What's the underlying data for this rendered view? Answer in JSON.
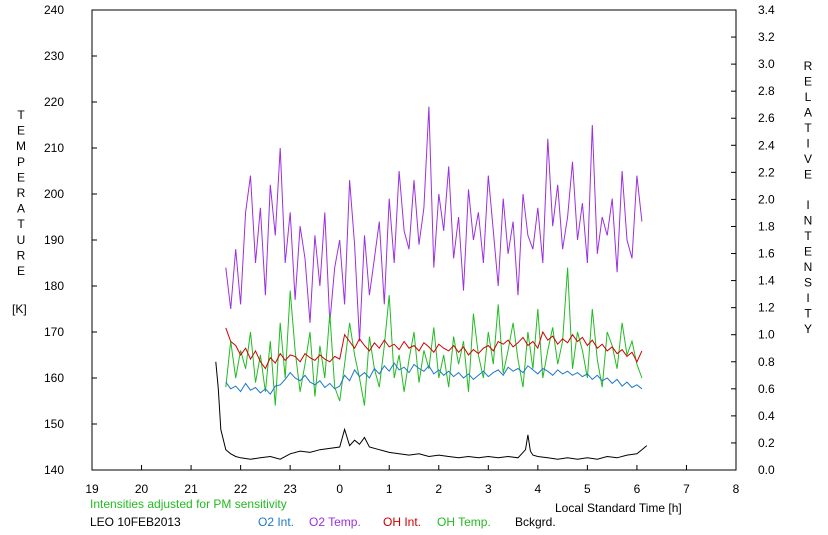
{
  "chart_data": {
    "type": "line",
    "xlabel": "Local Standard Time [h]",
    "ylabel_left": "TEMPERATURE",
    "ylabel_left_unit": "[K]",
    "ylabel_right": "RELATIVE INTENSITY",
    "xlim": [
      19,
      32
    ],
    "ylim_left": [
      140,
      240
    ],
    "ylim_right": [
      0,
      3.4
    ],
    "x_tick_labels": [
      "19",
      "20",
      "21",
      "22",
      "23",
      "0",
      "1",
      "2",
      "3",
      "4",
      "5",
      "6",
      "7",
      "8"
    ],
    "y_left_tick_labels": [
      "240",
      "230",
      "220",
      "210",
      "200",
      "190",
      "180",
      "170",
      "160",
      "150",
      "140"
    ],
    "y_right_tick_labels": [
      "3.4",
      "3.2",
      "3.0",
      "2.8",
      "2.6",
      "2.4",
      "2.2",
      "2.0",
      "1.8",
      "1.6",
      "1.4",
      "1.2",
      "1.0",
      "0.8",
      "0.6",
      "0.4",
      "0.2",
      "0.0"
    ],
    "note": "Intensities adjusted for PM sensitivity",
    "station": "LEO 10FEB2013",
    "grid": false,
    "colors": {
      "o2_int": "#1f78c8",
      "o2_temp": "#9b30e0",
      "oh_int": "#d00000",
      "oh_temp": "#22bb22",
      "bckgrd": "#000000",
      "note": "#22bb22"
    },
    "series": [
      {
        "name": "O2 Temp.",
        "axis": "left",
        "key": "o2_temp",
        "x": [
          21.7,
          21.8,
          21.9,
          22.0,
          22.1,
          22.2,
          22.3,
          22.4,
          22.5,
          22.6,
          22.7,
          22.8,
          22.9,
          23.0,
          23.1,
          23.2,
          23.3,
          23.4,
          23.5,
          23.6,
          23.7,
          23.8,
          23.9,
          24.0,
          24.1,
          24.2,
          24.3,
          24.4,
          24.5,
          24.6,
          24.7,
          24.8,
          24.9,
          25.0,
          25.1,
          25.2,
          25.3,
          25.4,
          25.5,
          25.6,
          25.7,
          25.8,
          25.9,
          26.0,
          26.1,
          26.2,
          26.3,
          26.4,
          26.5,
          26.6,
          26.7,
          26.8,
          26.9,
          27.0,
          27.1,
          27.2,
          27.3,
          27.4,
          27.5,
          27.6,
          27.7,
          27.8,
          27.9,
          28.0,
          28.1,
          28.2,
          28.3,
          28.4,
          28.5,
          28.6,
          28.7,
          28.8,
          28.9,
          29.0,
          29.1,
          29.2,
          29.3,
          29.4,
          29.5,
          29.6,
          29.7,
          29.8,
          29.9,
          30.0,
          30.1
        ],
        "y": [
          184,
          175,
          188,
          176,
          196,
          204,
          185,
          197,
          178,
          202,
          191,
          210,
          185,
          196,
          177,
          193,
          186,
          172,
          191,
          180,
          196,
          172,
          184,
          190,
          176,
          203,
          189,
          168,
          191,
          178,
          186,
          194,
          176,
          199,
          185,
          205,
          192,
          188,
          203,
          189,
          197,
          219,
          184,
          200,
          192,
          206,
          186,
          195,
          179,
          201,
          190,
          196,
          185,
          204,
          192,
          180,
          199,
          187,
          194,
          178,
          200,
          191,
          188,
          197,
          185,
          212,
          193,
          202,
          188,
          195,
          207,
          190,
          198,
          185,
          215,
          187,
          195,
          191,
          199,
          183,
          205,
          190,
          186,
          204,
          194
        ]
      },
      {
        "name": "OH Temp.",
        "axis": "left",
        "key": "oh_temp",
        "x": [
          21.7,
          21.8,
          21.9,
          22.0,
          22.1,
          22.2,
          22.3,
          22.4,
          22.5,
          22.6,
          22.7,
          22.8,
          22.9,
          23.0,
          23.1,
          23.2,
          23.3,
          23.4,
          23.5,
          23.6,
          23.7,
          23.8,
          23.9,
          24.0,
          24.1,
          24.2,
          24.3,
          24.4,
          24.5,
          24.6,
          24.7,
          24.8,
          24.9,
          25.0,
          25.1,
          25.2,
          25.3,
          25.4,
          25.5,
          25.6,
          25.7,
          25.8,
          25.9,
          26.0,
          26.1,
          26.2,
          26.3,
          26.4,
          26.5,
          26.6,
          26.7,
          26.8,
          26.9,
          27.0,
          27.1,
          27.2,
          27.3,
          27.4,
          27.5,
          27.6,
          27.7,
          27.8,
          27.9,
          28.0,
          28.1,
          28.2,
          28.3,
          28.4,
          28.5,
          28.6,
          28.7,
          28.8,
          28.9,
          29.0,
          29.1,
          29.2,
          29.3,
          29.4,
          29.5,
          29.6,
          29.7,
          29.8,
          29.9,
          30.0,
          30.1
        ],
        "y": [
          158,
          168,
          160,
          166,
          162,
          170,
          159,
          165,
          157,
          168,
          154,
          172,
          160,
          179,
          166,
          157,
          163,
          170,
          156,
          167,
          160,
          174,
          158,
          155,
          163,
          172,
          165,
          160,
          154,
          169,
          162,
          158,
          167,
          178,
          160,
          165,
          157,
          164,
          170,
          159,
          166,
          162,
          171,
          160,
          165,
          158,
          169,
          163,
          168,
          157,
          174,
          165,
          160,
          170,
          163,
          176,
          161,
          166,
          172,
          164,
          158,
          170,
          162,
          175,
          160,
          166,
          171,
          163,
          168,
          184,
          162,
          170,
          166,
          160,
          175,
          164,
          158,
          170,
          167,
          162,
          172,
          165,
          168,
          163,
          160
        ]
      },
      {
        "name": "OH Int.",
        "axis": "right",
        "key": "oh_int",
        "x": [
          21.7,
          21.8,
          21.9,
          22.0,
          22.1,
          22.2,
          22.3,
          22.4,
          22.5,
          22.6,
          22.7,
          22.8,
          22.9,
          23.0,
          23.1,
          23.2,
          23.3,
          23.4,
          23.5,
          23.6,
          23.7,
          23.8,
          23.9,
          24.0,
          24.1,
          24.2,
          24.3,
          24.4,
          24.5,
          24.6,
          24.7,
          24.8,
          24.9,
          25.0,
          25.1,
          25.2,
          25.3,
          25.4,
          25.5,
          25.6,
          25.7,
          25.8,
          25.9,
          26.0,
          26.1,
          26.2,
          26.3,
          26.4,
          26.5,
          26.6,
          26.7,
          26.8,
          26.9,
          27.0,
          27.1,
          27.2,
          27.3,
          27.4,
          27.5,
          27.6,
          27.7,
          27.8,
          27.9,
          28.0,
          28.1,
          28.2,
          28.3,
          28.4,
          28.5,
          28.6,
          28.7,
          28.8,
          28.9,
          29.0,
          29.1,
          29.2,
          29.3,
          29.4,
          29.5,
          29.6,
          29.7,
          29.8,
          29.9,
          30.0,
          30.1
        ],
        "y": [
          1.05,
          0.95,
          0.92,
          0.85,
          0.9,
          0.82,
          0.88,
          0.8,
          0.75,
          0.83,
          0.79,
          0.86,
          0.81,
          0.85,
          0.84,
          0.8,
          0.86,
          0.83,
          0.81,
          0.85,
          0.82,
          0.8,
          0.84,
          0.82,
          1.0,
          0.95,
          0.9,
          0.97,
          0.92,
          0.88,
          0.94,
          0.9,
          0.96,
          0.91,
          0.93,
          0.89,
          0.95,
          0.9,
          0.92,
          0.88,
          0.94,
          0.91,
          0.87,
          0.93,
          0.9,
          0.88,
          0.92,
          0.87,
          0.91,
          0.85,
          0.89,
          0.86,
          0.9,
          0.92,
          0.88,
          0.95,
          0.93,
          0.96,
          0.91,
          0.94,
          0.98,
          0.92,
          0.95,
          0.9,
          1.02,
          0.96,
          0.99,
          0.93,
          0.97,
          0.94,
          1.0,
          0.95,
          0.98,
          0.92,
          0.96,
          0.9,
          0.93,
          0.88,
          0.91,
          0.86,
          0.89,
          0.84,
          0.87,
          0.8,
          0.88
        ]
      },
      {
        "name": "O2 Int.",
        "axis": "right",
        "key": "o2_int",
        "x": [
          21.7,
          21.8,
          21.9,
          22.0,
          22.1,
          22.2,
          22.3,
          22.4,
          22.5,
          22.6,
          22.7,
          22.8,
          22.9,
          23.0,
          23.1,
          23.2,
          23.3,
          23.4,
          23.5,
          23.6,
          23.7,
          23.8,
          23.9,
          24.0,
          24.1,
          24.2,
          24.3,
          24.4,
          24.5,
          24.6,
          24.7,
          24.8,
          24.9,
          25.0,
          25.1,
          25.2,
          25.3,
          25.4,
          25.5,
          25.6,
          25.7,
          25.8,
          25.9,
          26.0,
          26.1,
          26.2,
          26.3,
          26.4,
          26.5,
          26.6,
          26.7,
          26.8,
          26.9,
          27.0,
          27.1,
          27.2,
          27.3,
          27.4,
          27.5,
          27.6,
          27.7,
          27.8,
          27.9,
          28.0,
          28.1,
          28.2,
          28.3,
          28.4,
          28.5,
          28.6,
          28.7,
          28.8,
          28.9,
          29.0,
          29.1,
          29.2,
          29.3,
          29.4,
          29.5,
          29.6,
          29.7,
          29.8,
          29.9,
          30.0,
          30.1
        ],
        "y": [
          0.65,
          0.6,
          0.62,
          0.58,
          0.64,
          0.59,
          0.61,
          0.57,
          0.6,
          0.56,
          0.62,
          0.63,
          0.67,
          0.72,
          0.68,
          0.66,
          0.7,
          0.65,
          0.63,
          0.66,
          0.61,
          0.64,
          0.6,
          0.62,
          0.7,
          0.66,
          0.74,
          0.69,
          0.72,
          0.68,
          0.75,
          0.71,
          0.77,
          0.73,
          0.79,
          0.74,
          0.76,
          0.72,
          0.78,
          0.75,
          0.73,
          0.77,
          0.71,
          0.74,
          0.7,
          0.73,
          0.69,
          0.72,
          0.68,
          0.71,
          0.67,
          0.7,
          0.73,
          0.69,
          0.72,
          0.74,
          0.7,
          0.76,
          0.73,
          0.75,
          0.72,
          0.77,
          0.74,
          0.71,
          0.75,
          0.73,
          0.7,
          0.74,
          0.71,
          0.73,
          0.7,
          0.72,
          0.69,
          0.71,
          0.67,
          0.7,
          0.66,
          0.68,
          0.64,
          0.67,
          0.62,
          0.65,
          0.61,
          0.63,
          0.6
        ]
      },
      {
        "name": "Bckgrd.",
        "axis": "right",
        "key": "bckgrd",
        "x": [
          21.5,
          21.55,
          21.6,
          21.7,
          21.8,
          21.9,
          22.0,
          22.2,
          22.4,
          22.6,
          22.8,
          23.0,
          23.2,
          23.4,
          23.6,
          23.8,
          24.0,
          24.1,
          24.2,
          24.3,
          24.4,
          24.5,
          24.6,
          24.8,
          25.0,
          25.2,
          25.4,
          25.6,
          25.8,
          26.0,
          26.2,
          26.4,
          26.6,
          26.8,
          27.0,
          27.2,
          27.4,
          27.6,
          27.75,
          27.8,
          27.85,
          27.9,
          28.0,
          28.2,
          28.4,
          28.6,
          28.8,
          29.0,
          29.2,
          29.4,
          29.6,
          29.8,
          30.0,
          30.1,
          30.2
        ],
        "y": [
          0.8,
          0.6,
          0.3,
          0.15,
          0.12,
          0.1,
          0.09,
          0.08,
          0.09,
          0.1,
          0.08,
          0.12,
          0.14,
          0.13,
          0.15,
          0.16,
          0.17,
          0.3,
          0.18,
          0.22,
          0.19,
          0.24,
          0.17,
          0.15,
          0.13,
          0.12,
          0.11,
          0.12,
          0.1,
          0.11,
          0.1,
          0.09,
          0.1,
          0.09,
          0.1,
          0.09,
          0.1,
          0.09,
          0.15,
          0.26,
          0.14,
          0.11,
          0.1,
          0.09,
          0.08,
          0.09,
          0.08,
          0.09,
          0.08,
          0.1,
          0.09,
          0.11,
          0.12,
          0.15,
          0.18
        ]
      }
    ]
  },
  "legend": [
    {
      "label": "O2 Int.",
      "key": "o2_int"
    },
    {
      "label": "O2 Temp.",
      "key": "o2_temp"
    },
    {
      "label": "OH Int.",
      "key": "oh_int"
    },
    {
      "label": "OH Temp.",
      "key": "oh_temp"
    },
    {
      "label": "Bckgrd.",
      "key": "bckgrd"
    }
  ]
}
